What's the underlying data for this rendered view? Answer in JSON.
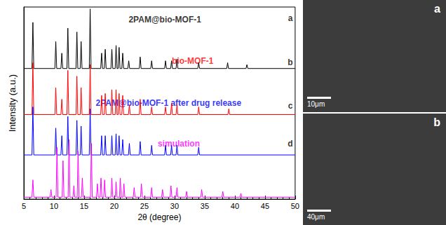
{
  "chart_data": {
    "type": "line",
    "x_label": "2θ (degree)",
    "y_label": "Intensity (a.u.)",
    "xlim": [
      5,
      50
    ],
    "xticks": [
      5,
      10,
      15,
      20,
      25,
      30,
      35,
      40,
      45,
      50
    ],
    "ylim": [
      0,
      100
    ],
    "yticks": [],
    "tick_labels": "x",
    "grid": false,
    "series": [
      {
        "color": "#000000",
        "values": [
          [
            5,
            68
          ],
          [
            6.35,
            68
          ],
          [
            6.5,
            92
          ],
          [
            6.65,
            68
          ],
          [
            10.15,
            68
          ],
          [
            10.3,
            82
          ],
          [
            10.45,
            68
          ],
          [
            11.15,
            68
          ],
          [
            11.3,
            76
          ],
          [
            11.45,
            68
          ],
          [
            12.15,
            68
          ],
          [
            12.3,
            89
          ],
          [
            12.45,
            68
          ],
          [
            13.65,
            68
          ],
          [
            13.8,
            87
          ],
          [
            13.95,
            68
          ],
          [
            14.35,
            68
          ],
          [
            14.5,
            82
          ],
          [
            14.65,
            68
          ],
          [
            15.85,
            68
          ],
          [
            16,
            99
          ],
          [
            16.15,
            68
          ],
          [
            17.75,
            68
          ],
          [
            17.9,
            76
          ],
          [
            18.05,
            68
          ],
          [
            18.35,
            68
          ],
          [
            18.5,
            78
          ],
          [
            18.65,
            68
          ],
          [
            19.45,
            68
          ],
          [
            19.6,
            78
          ],
          [
            19.75,
            68
          ],
          [
            20.15,
            68
          ],
          [
            20.3,
            80
          ],
          [
            20.45,
            68
          ],
          [
            20.65,
            68
          ],
          [
            20.8,
            79
          ],
          [
            20.95,
            68
          ],
          [
            21.25,
            68
          ],
          [
            21.4,
            76
          ],
          [
            21.55,
            68
          ],
          [
            22.25,
            68
          ],
          [
            22.4,
            72
          ],
          [
            22.55,
            68
          ],
          [
            24.15,
            68
          ],
          [
            24.3,
            74
          ],
          [
            24.45,
            68
          ],
          [
            26.05,
            68
          ],
          [
            26.2,
            72
          ],
          [
            26.35,
            68
          ],
          [
            28.35,
            68
          ],
          [
            28.5,
            72
          ],
          [
            28.65,
            68
          ],
          [
            29.35,
            68
          ],
          [
            29.5,
            72
          ],
          [
            29.65,
            68
          ],
          [
            30.25,
            68
          ],
          [
            30.4,
            73
          ],
          [
            30.55,
            68
          ],
          [
            33.85,
            68
          ],
          [
            34,
            71
          ],
          [
            34.15,
            68
          ],
          [
            38.65,
            68
          ],
          [
            38.8,
            71
          ],
          [
            38.95,
            68
          ],
          [
            41.85,
            68
          ],
          [
            42,
            70
          ],
          [
            42.15,
            68
          ],
          [
            50,
            68
          ]
        ]
      },
      {
        "color": "#ff0000",
        "values": [
          [
            5,
            44
          ],
          [
            6.35,
            44
          ],
          [
            6.5,
            71
          ],
          [
            6.65,
            44
          ],
          [
            10.15,
            44
          ],
          [
            10.3,
            58
          ],
          [
            10.45,
            44
          ],
          [
            11.15,
            44
          ],
          [
            11.3,
            52
          ],
          [
            11.45,
            44
          ],
          [
            12.15,
            44
          ],
          [
            12.3,
            67
          ],
          [
            12.45,
            44
          ],
          [
            13.65,
            44
          ],
          [
            13.8,
            64
          ],
          [
            13.95,
            44
          ],
          [
            14.35,
            44
          ],
          [
            14.5,
            58
          ],
          [
            14.65,
            44
          ],
          [
            15.85,
            44
          ],
          [
            16,
            70
          ],
          [
            16.15,
            44
          ],
          [
            17.75,
            44
          ],
          [
            17.9,
            54
          ],
          [
            18.05,
            44
          ],
          [
            18.35,
            44
          ],
          [
            18.5,
            55
          ],
          [
            18.65,
            44
          ],
          [
            19.45,
            44
          ],
          [
            19.6,
            57
          ],
          [
            19.75,
            44
          ],
          [
            20.15,
            44
          ],
          [
            20.3,
            57
          ],
          [
            20.45,
            44
          ],
          [
            20.65,
            44
          ],
          [
            20.8,
            55
          ],
          [
            20.95,
            44
          ],
          [
            21.25,
            44
          ],
          [
            21.4,
            54
          ],
          [
            21.55,
            44
          ],
          [
            22.35,
            44
          ],
          [
            22.5,
            49
          ],
          [
            22.65,
            44
          ],
          [
            24.15,
            44
          ],
          [
            24.3,
            52
          ],
          [
            24.45,
            44
          ],
          [
            26.05,
            44
          ],
          [
            26.2,
            48
          ],
          [
            26.35,
            44
          ],
          [
            28.35,
            44
          ],
          [
            28.5,
            48
          ],
          [
            28.65,
            44
          ],
          [
            29.35,
            44
          ],
          [
            29.5,
            50
          ],
          [
            29.65,
            44
          ],
          [
            30.25,
            44
          ],
          [
            30.4,
            49
          ],
          [
            30.55,
            44
          ],
          [
            33.85,
            44
          ],
          [
            34,
            48
          ],
          [
            34.15,
            44
          ],
          [
            38.85,
            44
          ],
          [
            39,
            47
          ],
          [
            39.15,
            44
          ],
          [
            50,
            44
          ]
        ]
      },
      {
        "color": "#0000ff",
        "values": [
          [
            5,
            23
          ],
          [
            6.35,
            23
          ],
          [
            6.5,
            48
          ],
          [
            6.65,
            23
          ],
          [
            10.15,
            23
          ],
          [
            10.3,
            37
          ],
          [
            10.45,
            23
          ],
          [
            11.15,
            23
          ],
          [
            11.3,
            33
          ],
          [
            11.45,
            23
          ],
          [
            12.15,
            23
          ],
          [
            12.3,
            43
          ],
          [
            12.45,
            23
          ],
          [
            13.65,
            23
          ],
          [
            13.8,
            41
          ],
          [
            13.95,
            23
          ],
          [
            14.35,
            23
          ],
          [
            14.5,
            38
          ],
          [
            14.65,
            23
          ],
          [
            15.85,
            23
          ],
          [
            16,
            47
          ],
          [
            16.15,
            23
          ],
          [
            17.75,
            23
          ],
          [
            17.9,
            33
          ],
          [
            18.05,
            23
          ],
          [
            18.35,
            23
          ],
          [
            18.5,
            33
          ],
          [
            18.65,
            23
          ],
          [
            19.45,
            23
          ],
          [
            19.6,
            33
          ],
          [
            19.75,
            23
          ],
          [
            20.15,
            23
          ],
          [
            20.3,
            34
          ],
          [
            20.45,
            23
          ],
          [
            20.65,
            23
          ],
          [
            20.8,
            33
          ],
          [
            20.95,
            23
          ],
          [
            21.25,
            23
          ],
          [
            21.4,
            31
          ],
          [
            21.55,
            23
          ],
          [
            22.35,
            23
          ],
          [
            22.5,
            29
          ],
          [
            22.65,
            23
          ],
          [
            24.15,
            23
          ],
          [
            24.3,
            30
          ],
          [
            24.45,
            23
          ],
          [
            26.05,
            23
          ],
          [
            26.2,
            28
          ],
          [
            26.35,
            23
          ],
          [
            28.35,
            23
          ],
          [
            28.5,
            28
          ],
          [
            28.65,
            23
          ],
          [
            29.35,
            23
          ],
          [
            29.5,
            28
          ],
          [
            29.65,
            23
          ],
          [
            30.25,
            23
          ],
          [
            30.4,
            28
          ],
          [
            30.55,
            23
          ],
          [
            33.85,
            23
          ],
          [
            34,
            27
          ],
          [
            34.15,
            23
          ],
          [
            50,
            23
          ]
        ]
      },
      {
        "color": "#ff00ff",
        "values": [
          [
            5,
            1
          ],
          [
            6.35,
            1
          ],
          [
            6.5,
            10
          ],
          [
            6.65,
            1
          ],
          [
            9.35,
            1
          ],
          [
            9.5,
            5
          ],
          [
            9.65,
            1
          ],
          [
            10.35,
            1
          ],
          [
            10.5,
            27
          ],
          [
            10.65,
            1
          ],
          [
            11.35,
            1
          ],
          [
            11.5,
            20
          ],
          [
            11.65,
            1
          ],
          [
            12.35,
            1
          ],
          [
            12.5,
            31
          ],
          [
            12.65,
            1
          ],
          [
            13.15,
            1
          ],
          [
            13.3,
            7
          ],
          [
            13.45,
            1
          ],
          [
            13.85,
            1
          ],
          [
            14,
            25
          ],
          [
            14.15,
            1
          ],
          [
            14.55,
            1
          ],
          [
            14.7,
            11
          ],
          [
            14.85,
            1
          ],
          [
            16.05,
            1
          ],
          [
            16.2,
            29
          ],
          [
            16.35,
            1
          ],
          [
            17.05,
            1
          ],
          [
            17.2,
            8
          ],
          [
            17.35,
            1
          ],
          [
            17.65,
            1
          ],
          [
            17.8,
            11
          ],
          [
            17.95,
            1
          ],
          [
            18.25,
            1
          ],
          [
            18.4,
            10
          ],
          [
            18.55,
            1
          ],
          [
            19.45,
            1
          ],
          [
            19.6,
            11
          ],
          [
            19.75,
            1
          ],
          [
            20.15,
            1
          ],
          [
            20.3,
            9
          ],
          [
            20.45,
            1
          ],
          [
            20.85,
            1
          ],
          [
            21,
            11
          ],
          [
            21.15,
            1
          ],
          [
            21.45,
            1
          ],
          [
            21.6,
            8
          ],
          [
            21.75,
            1
          ],
          [
            23.15,
            1
          ],
          [
            23.3,
            6
          ],
          [
            23.45,
            1
          ],
          [
            24.35,
            1
          ],
          [
            24.5,
            8
          ],
          [
            24.65,
            1
          ],
          [
            26.05,
            1
          ],
          [
            26.2,
            6
          ],
          [
            26.35,
            1
          ],
          [
            27.85,
            1
          ],
          [
            28,
            5
          ],
          [
            28.15,
            1
          ],
          [
            29.25,
            1
          ],
          [
            29.4,
            7
          ],
          [
            29.55,
            1
          ],
          [
            30.25,
            1
          ],
          [
            30.4,
            6
          ],
          [
            30.55,
            1
          ],
          [
            31.85,
            1
          ],
          [
            32,
            4
          ],
          [
            32.15,
            1
          ],
          [
            34.35,
            1
          ],
          [
            34.5,
            5
          ],
          [
            34.65,
            1
          ],
          [
            37.85,
            1
          ],
          [
            38,
            4
          ],
          [
            38.15,
            1
          ],
          [
            40.85,
            1
          ],
          [
            41,
            3
          ],
          [
            41.15,
            1
          ],
          [
            50,
            1
          ]
        ]
      }
    ],
    "annotations": [
      {
        "text": "2PAM@bio-MOF-1",
        "x": 28.4,
        "y": 93.6,
        "color": "#000000"
      },
      {
        "text": "a",
        "x": 49.2,
        "y": 94.3,
        "color": "#000000"
      },
      {
        "text": "bio-MOF-1",
        "x": 33,
        "y": 72,
        "color": "#ff0000"
      },
      {
        "text": "b",
        "x": 49.2,
        "y": 71,
        "color": "#000000"
      },
      {
        "text": "2PAM@bio-MOF-1 after drug release",
        "x": 29,
        "y": 50,
        "color": "#0000ff"
      },
      {
        "text": "c",
        "x": 49.2,
        "y": 48.5,
        "color": "#000000"
      },
      {
        "text": "simulation",
        "x": 30.7,
        "y": 29,
        "color": "#ff00ff"
      },
      {
        "text": "d",
        "x": 49.2,
        "y": 29,
        "color": "#000000"
      }
    ]
  },
  "images": [
    {
      "label": "a",
      "scale_bar": "10μm"
    },
    {
      "label": "b",
      "scale_bar": "40μm"
    }
  ]
}
